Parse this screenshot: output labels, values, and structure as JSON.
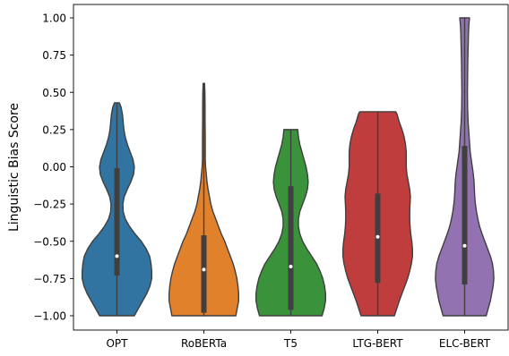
{
  "chart_data": {
    "type": "violin",
    "title": "",
    "xlabel": "",
    "ylabel": "Linguistic Bias Score",
    "ylim": [
      -1.1,
      1.1
    ],
    "yticks": [
      -1.0,
      -0.75,
      -0.5,
      -0.25,
      0.0,
      0.25,
      0.5,
      0.75,
      1.0
    ],
    "ytick_labels": [
      "−1.00",
      "−0.75",
      "−0.50",
      "−0.25",
      "0.00",
      "0.25",
      "0.50",
      "0.75",
      "1.00"
    ],
    "categories": [
      "OPT",
      "RoBERTa",
      "T5",
      "LTG-BERT",
      "ELC-BERT"
    ],
    "colors": [
      "#3274a1",
      "#e1812c",
      "#3a923a",
      "#c03d3e",
      "#9372b2"
    ],
    "series": [
      {
        "name": "OPT",
        "min": -1.0,
        "max": 0.43,
        "q1": -0.73,
        "median": -0.6,
        "q3": -0.01,
        "density": [
          [
            -1.0,
            0.5
          ],
          [
            -0.95,
            0.62
          ],
          [
            -0.9,
            0.74
          ],
          [
            -0.85,
            0.86
          ],
          [
            -0.8,
            0.95
          ],
          [
            -0.75,
            1.0
          ],
          [
            -0.7,
            1.0
          ],
          [
            -0.65,
            0.98
          ],
          [
            -0.6,
            0.94
          ],
          [
            -0.55,
            0.84
          ],
          [
            -0.5,
            0.7
          ],
          [
            -0.45,
            0.52
          ],
          [
            -0.4,
            0.36
          ],
          [
            -0.35,
            0.24
          ],
          [
            -0.3,
            0.18
          ],
          [
            -0.25,
            0.17
          ],
          [
            -0.2,
            0.21
          ],
          [
            -0.15,
            0.3
          ],
          [
            -0.1,
            0.4
          ],
          [
            -0.05,
            0.48
          ],
          [
            0.0,
            0.5
          ],
          [
            0.05,
            0.46
          ],
          [
            0.1,
            0.38
          ],
          [
            0.15,
            0.3
          ],
          [
            0.2,
            0.24
          ],
          [
            0.25,
            0.2
          ],
          [
            0.3,
            0.18
          ],
          [
            0.35,
            0.16
          ],
          [
            0.4,
            0.12
          ],
          [
            0.43,
            0.07
          ]
        ]
      },
      {
        "name": "RoBERTa",
        "min": -1.0,
        "max": 0.56,
        "q1": -0.98,
        "median": -0.69,
        "q3": -0.46,
        "density": [
          [
            -1.0,
            0.92
          ],
          [
            -0.95,
            0.96
          ],
          [
            -0.9,
            1.0
          ],
          [
            -0.85,
            1.0
          ],
          [
            -0.8,
            0.98
          ],
          [
            -0.75,
            0.95
          ],
          [
            -0.7,
            0.9
          ],
          [
            -0.65,
            0.84
          ],
          [
            -0.6,
            0.76
          ],
          [
            -0.55,
            0.68
          ],
          [
            -0.5,
            0.6
          ],
          [
            -0.45,
            0.5
          ],
          [
            -0.4,
            0.42
          ],
          [
            -0.35,
            0.34
          ],
          [
            -0.3,
            0.26
          ],
          [
            -0.25,
            0.2
          ],
          [
            -0.2,
            0.16
          ],
          [
            -0.15,
            0.12
          ],
          [
            -0.1,
            0.09
          ],
          [
            -0.05,
            0.07
          ],
          [
            0.0,
            0.05
          ],
          [
            0.05,
            0.04
          ],
          [
            0.1,
            0.04
          ],
          [
            0.2,
            0.04
          ],
          [
            0.3,
            0.035
          ],
          [
            0.4,
            0.035
          ],
          [
            0.5,
            0.03
          ],
          [
            0.56,
            0.02
          ]
        ]
      },
      {
        "name": "T5",
        "min": -1.0,
        "max": 0.25,
        "q1": -0.96,
        "median": -0.67,
        "q3": -0.13,
        "density": [
          [
            -1.0,
            0.9
          ],
          [
            -0.95,
            0.96
          ],
          [
            -0.9,
            1.0
          ],
          [
            -0.85,
            1.0
          ],
          [
            -0.8,
            0.97
          ],
          [
            -0.75,
            0.92
          ],
          [
            -0.7,
            0.84
          ],
          [
            -0.65,
            0.74
          ],
          [
            -0.6,
            0.6
          ],
          [
            -0.55,
            0.46
          ],
          [
            -0.5,
            0.34
          ],
          [
            -0.45,
            0.26
          ],
          [
            -0.4,
            0.22
          ],
          [
            -0.35,
            0.22
          ],
          [
            -0.3,
            0.26
          ],
          [
            -0.25,
            0.34
          ],
          [
            -0.2,
            0.42
          ],
          [
            -0.15,
            0.48
          ],
          [
            -0.1,
            0.5
          ],
          [
            -0.05,
            0.48
          ],
          [
            0.0,
            0.44
          ],
          [
            0.05,
            0.38
          ],
          [
            0.1,
            0.32
          ],
          [
            0.15,
            0.26
          ],
          [
            0.2,
            0.22
          ],
          [
            0.25,
            0.2
          ]
        ]
      },
      {
        "name": "LTG-BERT",
        "min": -1.0,
        "max": 0.37,
        "q1": -0.78,
        "median": -0.47,
        "q3": -0.18,
        "density": [
          [
            -1.0,
            0.48
          ],
          [
            -0.95,
            0.55
          ],
          [
            -0.9,
            0.62
          ],
          [
            -0.85,
            0.7
          ],
          [
            -0.8,
            0.78
          ],
          [
            -0.75,
            0.86
          ],
          [
            -0.7,
            0.92
          ],
          [
            -0.65,
            0.97
          ],
          [
            -0.6,
            1.0
          ],
          [
            -0.55,
            1.0
          ],
          [
            -0.5,
            0.98
          ],
          [
            -0.45,
            0.95
          ],
          [
            -0.4,
            0.93
          ],
          [
            -0.35,
            0.92
          ],
          [
            -0.3,
            0.92
          ],
          [
            -0.25,
            0.93
          ],
          [
            -0.2,
            0.94
          ],
          [
            -0.15,
            0.92
          ],
          [
            -0.1,
            0.88
          ],
          [
            -0.05,
            0.84
          ],
          [
            0.0,
            0.82
          ],
          [
            0.05,
            0.82
          ],
          [
            0.1,
            0.82
          ],
          [
            0.15,
            0.8
          ],
          [
            0.2,
            0.76
          ],
          [
            0.25,
            0.7
          ],
          [
            0.3,
            0.62
          ],
          [
            0.35,
            0.56
          ],
          [
            0.37,
            0.52
          ]
        ]
      },
      {
        "name": "ELC-BERT",
        "min": -1.0,
        "max": 1.0,
        "q1": -0.79,
        "median": -0.53,
        "q3": 0.14,
        "density": [
          [
            -1.0,
            0.62
          ],
          [
            -0.95,
            0.68
          ],
          [
            -0.9,
            0.74
          ],
          [
            -0.85,
            0.78
          ],
          [
            -0.8,
            0.82
          ],
          [
            -0.75,
            0.84
          ],
          [
            -0.7,
            0.83
          ],
          [
            -0.65,
            0.8
          ],
          [
            -0.6,
            0.74
          ],
          [
            -0.55,
            0.66
          ],
          [
            -0.5,
            0.58
          ],
          [
            -0.45,
            0.5
          ],
          [
            -0.4,
            0.43
          ],
          [
            -0.35,
            0.38
          ],
          [
            -0.3,
            0.34
          ],
          [
            -0.25,
            0.31
          ],
          [
            -0.2,
            0.29
          ],
          [
            -0.15,
            0.28
          ],
          [
            -0.1,
            0.27
          ],
          [
            -0.05,
            0.25
          ],
          [
            0.0,
            0.22
          ],
          [
            0.05,
            0.19
          ],
          [
            0.1,
            0.16
          ],
          [
            0.2,
            0.13
          ],
          [
            0.3,
            0.1
          ],
          [
            0.4,
            0.085
          ],
          [
            0.5,
            0.08
          ],
          [
            0.6,
            0.085
          ],
          [
            0.7,
            0.09
          ],
          [
            0.8,
            0.1
          ],
          [
            0.9,
            0.11
          ],
          [
            0.95,
            0.12
          ],
          [
            1.0,
            0.14
          ]
        ]
      }
    ]
  }
}
